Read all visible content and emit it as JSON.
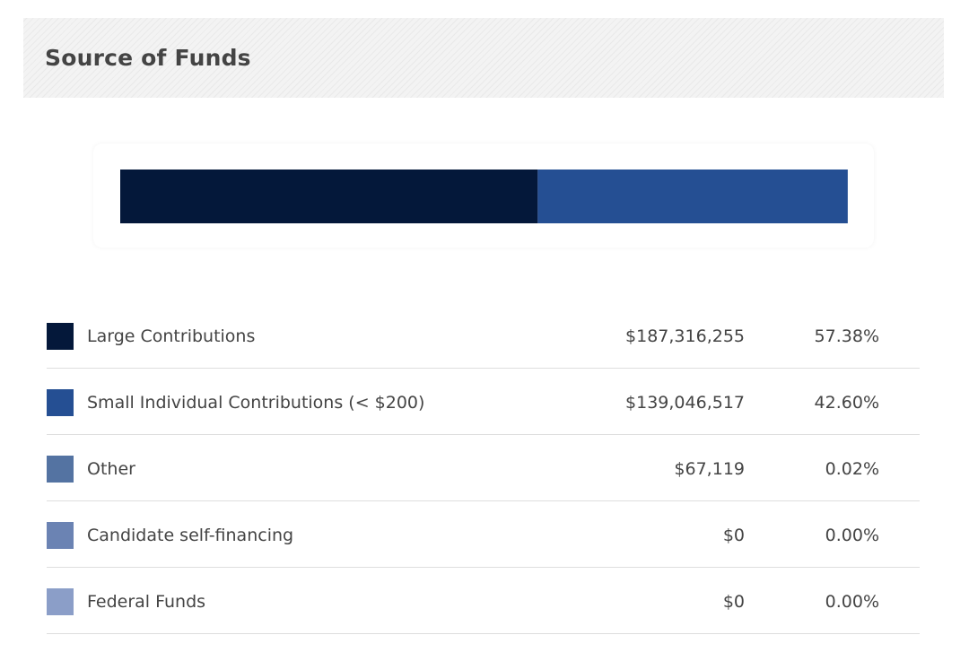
{
  "header": {
    "title": "Source of Funds"
  },
  "chart_data": {
    "type": "bar",
    "orientation": "horizontal-stacked",
    "title": "Source of Funds",
    "unit": "%",
    "xlim": [
      0,
      100
    ],
    "series": [
      {
        "name": "Large Contributions",
        "amount": "$187,316,255",
        "percent": "57.38%",
        "value": 57.38,
        "color": "#04183a"
      },
      {
        "name": "Small Individual Contributions (< $200)",
        "amount": "$139,046,517",
        "percent": "42.60%",
        "value": 42.6,
        "color": "#254f93"
      },
      {
        "name": "Other",
        "amount": "$67,119",
        "percent": "0.02%",
        "value": 0.02,
        "color": "#5473a2"
      },
      {
        "name": "Candidate self-financing",
        "amount": "$0",
        "percent": "0.00%",
        "value": 0.0,
        "color": "#6b83b3"
      },
      {
        "name": "Federal Funds",
        "amount": "$0",
        "percent": "0.00%",
        "value": 0.0,
        "color": "#8b9ec8"
      }
    ]
  }
}
